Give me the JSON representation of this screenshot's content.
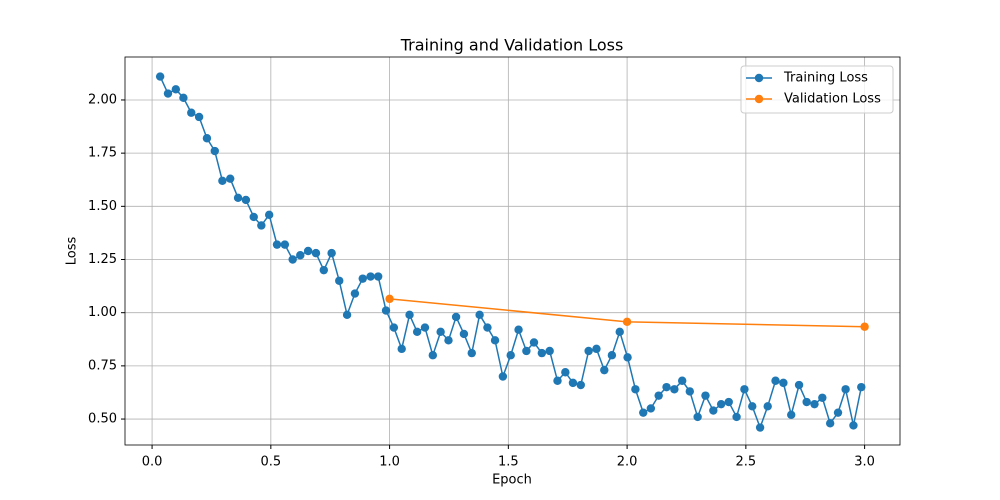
{
  "chart_data": {
    "type": "line",
    "title": "Training and Validation Loss",
    "xlabel": "Epoch",
    "ylabel": "Loss",
    "series": [
      {
        "name": "Training Loss",
        "color": "#1f77b4",
        "x": [
          0.034,
          0.067,
          0.1,
          0.132,
          0.165,
          0.198,
          0.231,
          0.264,
          0.296,
          0.329,
          0.362,
          0.395,
          0.428,
          0.46,
          0.493,
          0.526,
          0.559,
          0.592,
          0.624,
          0.657,
          0.69,
          0.723,
          0.756,
          0.788,
          0.821,
          0.854,
          0.887,
          0.92,
          0.952,
          0.985,
          1.018,
          1.051,
          1.084,
          1.116,
          1.149,
          1.182,
          1.215,
          1.248,
          1.28,
          1.313,
          1.346,
          1.379,
          1.412,
          1.444,
          1.477,
          1.51,
          1.543,
          1.576,
          1.608,
          1.641,
          1.674,
          1.707,
          1.74,
          1.772,
          1.805,
          1.838,
          1.871,
          1.904,
          1.936,
          1.969,
          2.002,
          2.035,
          2.068,
          2.1,
          2.133,
          2.166,
          2.199,
          2.232,
          2.264,
          2.297,
          2.33,
          2.363,
          2.396,
          2.428,
          2.461,
          2.494,
          2.527,
          2.56,
          2.592,
          2.625,
          2.658,
          2.691,
          2.724,
          2.756,
          2.789,
          2.822,
          2.855,
          2.888,
          2.92,
          2.953,
          2.986
        ],
        "values": [
          2.11,
          2.03,
          2.05,
          2.01,
          1.94,
          1.92,
          1.82,
          1.76,
          1.62,
          1.63,
          1.54,
          1.53,
          1.45,
          1.41,
          1.46,
          1.32,
          1.32,
          1.25,
          1.27,
          1.29,
          1.28,
          1.2,
          1.28,
          1.15,
          0.99,
          1.09,
          1.16,
          1.17,
          1.17,
          1.01,
          0.93,
          0.83,
          0.99,
          0.91,
          0.93,
          0.8,
          0.91,
          0.87,
          0.98,
          0.9,
          0.81,
          0.99,
          0.93,
          0.87,
          0.7,
          0.8,
          0.92,
          0.82,
          0.86,
          0.81,
          0.82,
          0.68,
          0.72,
          0.67,
          0.66,
          0.82,
          0.83,
          0.73,
          0.8,
          0.91,
          0.79,
          0.64,
          0.53,
          0.55,
          0.61,
          0.65,
          0.64,
          0.68,
          0.63,
          0.51,
          0.61,
          0.54,
          0.57,
          0.58,
          0.51,
          0.64,
          0.56,
          0.46,
          0.56,
          0.68,
          0.67,
          0.52,
          0.66,
          0.58,
          0.57,
          0.6,
          0.48,
          0.53,
          0.64,
          0.47,
          0.65
        ]
      },
      {
        "name": "Validation Loss",
        "color": "#ff7f0e",
        "x": [
          1,
          2,
          3
        ],
        "values": [
          1.065,
          0.957,
          0.934
        ]
      }
    ],
    "xlim": [
      -0.114,
      3.149
    ],
    "ylim": [
      0.378,
      2.202
    ],
    "xticks": [
      {
        "value": 0,
        "label": "0.0"
      },
      {
        "value": 0.5,
        "label": "0.5"
      },
      {
        "value": 1,
        "label": "1.0"
      },
      {
        "value": 1.5,
        "label": "1.5"
      },
      {
        "value": 2,
        "label": "2.0"
      },
      {
        "value": 2.5,
        "label": "2.5"
      },
      {
        "value": 3,
        "label": "3.0"
      }
    ],
    "yticks": [
      {
        "value": 0.5,
        "label": "0.50"
      },
      {
        "value": 0.75,
        "label": "0.75"
      },
      {
        "value": 1,
        "label": "1.00"
      },
      {
        "value": 1.25,
        "label": "1.25"
      },
      {
        "value": 1.5,
        "label": "1.50"
      },
      {
        "value": 1.75,
        "label": "1.75"
      },
      {
        "value": 2,
        "label": "2.00"
      }
    ],
    "grid": true,
    "legend": "upper right"
  }
}
